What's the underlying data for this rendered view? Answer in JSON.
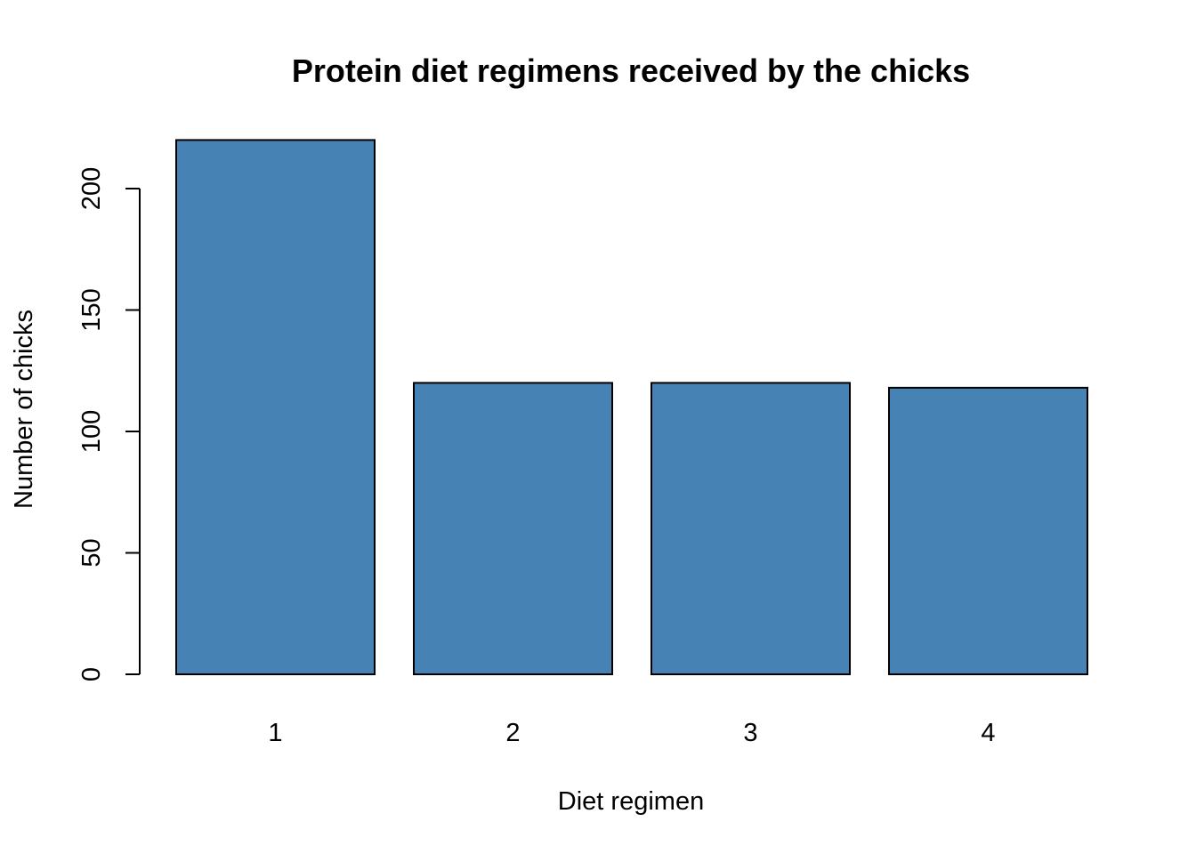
{
  "chart_data": {
    "type": "bar",
    "title": "Protein diet regimens received by the chicks",
    "xlabel": "Diet regimen",
    "ylabel": "Number of chicks",
    "categories": [
      "1",
      "2",
      "3",
      "4"
    ],
    "values": [
      220,
      120,
      120,
      118
    ],
    "ylim": [
      0,
      220
    ],
    "yticks": [
      0,
      50,
      100,
      150,
      200
    ],
    "bar_color": "#4682B4",
    "grid": false,
    "legend": "none"
  }
}
